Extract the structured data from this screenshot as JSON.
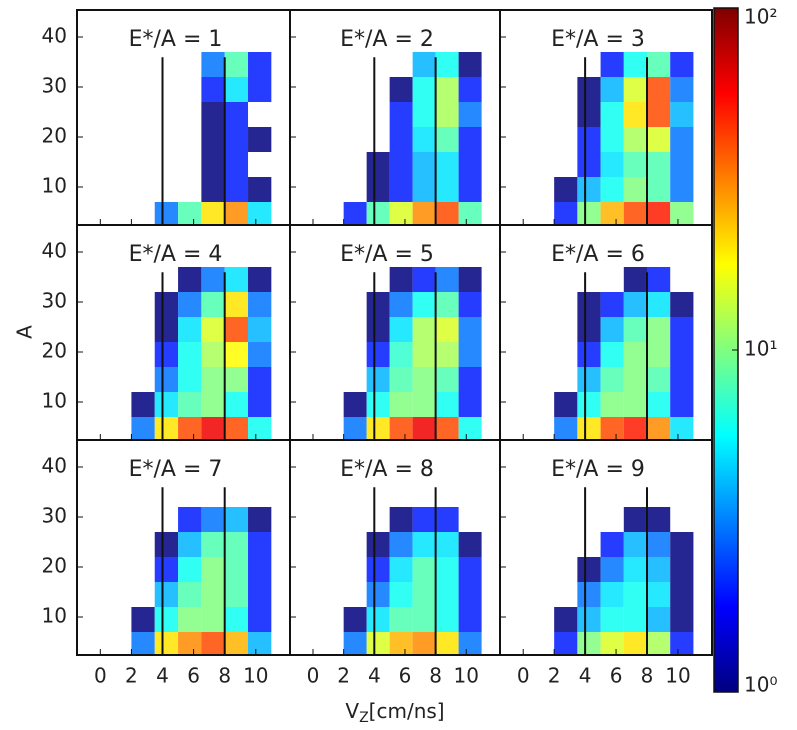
{
  "chart_data": {
    "type": "heatmap-grid",
    "x_label": [
      "V",
      "Z",
      "[cm/ns]"
    ],
    "y_label": "A",
    "xlim": [
      -1.5,
      12.2
    ],
    "ylim": [
      2.4,
      45.4
    ],
    "xticks": [
      0,
      2,
      4,
      6,
      8,
      10
    ],
    "yticks": [
      10,
      20,
      30,
      40
    ],
    "xbins": [
      2,
      3.5,
      5,
      6.5,
      8,
      9.5,
      11
    ],
    "ybins": [
      2,
      7,
      12,
      17,
      22,
      27,
      32,
      37
    ],
    "vlines": [
      4,
      8
    ],
    "colorbar": {
      "lim": [
        1,
        100
      ],
      "log": true,
      "colormap": "jet",
      "ticks": [
        {
          "value": 1,
          "label": "10⁰"
        },
        {
          "value": 10,
          "label": "10¹"
        },
        {
          "value": 100,
          "label": "10²"
        }
      ]
    },
    "panels": [
      {
        "title": "E*/A = 1",
        "values": [
          [
            null,
            3,
            8,
            20,
            30,
            5
          ],
          [
            null,
            null,
            null,
            1,
            2,
            1
          ],
          [
            null,
            null,
            null,
            1,
            2,
            null
          ],
          [
            null,
            null,
            null,
            1,
            2,
            1
          ],
          [
            null,
            null,
            null,
            1,
            2,
            null
          ],
          [
            null,
            null,
            null,
            2,
            5,
            2
          ],
          [
            null,
            null,
            null,
            3,
            8,
            2
          ]
        ]
      },
      {
        "title": "E*/A = 2",
        "values": [
          [
            2,
            8,
            15,
            30,
            40,
            8
          ],
          [
            null,
            1,
            2,
            4,
            5,
            2
          ],
          [
            null,
            1,
            2,
            4,
            5,
            2
          ],
          [
            null,
            null,
            2,
            5,
            8,
            2
          ],
          [
            null,
            null,
            2,
            6,
            12,
            3
          ],
          [
            null,
            null,
            1,
            6,
            12,
            2
          ],
          [
            null,
            null,
            null,
            4,
            6,
            1
          ]
        ]
      },
      {
        "title": "E*/A = 3",
        "values": [
          [
            2,
            10,
            25,
            40,
            50,
            10
          ],
          [
            1,
            4,
            6,
            10,
            8,
            3
          ],
          [
            null,
            2,
            5,
            8,
            8,
            3
          ],
          [
            null,
            2,
            6,
            12,
            15,
            3
          ],
          [
            null,
            1,
            6,
            20,
            40,
            4
          ],
          [
            null,
            1,
            4,
            15,
            40,
            3
          ],
          [
            null,
            null,
            2,
            6,
            8,
            2
          ]
        ]
      },
      {
        "title": "E*/A = 4",
        "values": [
          [
            3,
            20,
            40,
            60,
            40,
            6
          ],
          [
            1,
            5,
            8,
            10,
            6,
            2
          ],
          [
            null,
            3,
            6,
            10,
            10,
            2
          ],
          [
            null,
            2,
            6,
            12,
            18,
            3
          ],
          [
            null,
            1,
            5,
            15,
            40,
            4
          ],
          [
            null,
            1,
            3,
            8,
            20,
            3
          ],
          [
            null,
            null,
            1,
            3,
            5,
            1
          ]
        ]
      },
      {
        "title": "E*/A = 5",
        "values": [
          [
            3,
            20,
            40,
            60,
            40,
            6
          ],
          [
            1,
            6,
            10,
            10,
            6,
            2
          ],
          [
            null,
            4,
            8,
            10,
            8,
            2
          ],
          [
            null,
            2,
            7,
            12,
            12,
            3
          ],
          [
            null,
            1,
            5,
            12,
            15,
            3
          ],
          [
            null,
            1,
            3,
            6,
            8,
            2
          ],
          [
            null,
            null,
            1,
            2,
            3,
            1
          ]
        ]
      },
      {
        "title": "E*/A = 6",
        "values": [
          [
            3,
            20,
            40,
            50,
            30,
            5
          ],
          [
            1,
            6,
            10,
            10,
            6,
            2
          ],
          [
            null,
            4,
            8,
            10,
            8,
            2
          ],
          [
            null,
            2,
            6,
            10,
            10,
            2
          ],
          [
            null,
            1,
            4,
            8,
            10,
            2
          ],
          [
            null,
            1,
            2,
            4,
            5,
            1
          ],
          [
            null,
            null,
            null,
            1,
            2,
            null
          ]
        ]
      },
      {
        "title": "E*/A = 7",
        "values": [
          [
            3,
            20,
            30,
            40,
            25,
            4
          ],
          [
            1,
            6,
            10,
            10,
            6,
            2
          ],
          [
            null,
            4,
            8,
            10,
            8,
            2
          ],
          [
            null,
            2,
            6,
            10,
            8,
            2
          ],
          [
            null,
            1,
            4,
            8,
            8,
            2
          ],
          [
            null,
            null,
            2,
            3,
            4,
            1
          ],
          [
            null,
            null,
            null,
            null,
            null,
            null
          ]
        ]
      },
      {
        "title": "E*/A = 8",
        "values": [
          [
            3,
            15,
            25,
            30,
            20,
            3
          ],
          [
            1,
            5,
            8,
            8,
            6,
            2
          ],
          [
            null,
            3,
            6,
            8,
            6,
            2
          ],
          [
            null,
            2,
            5,
            8,
            6,
            2
          ],
          [
            null,
            1,
            3,
            5,
            5,
            1
          ],
          [
            null,
            null,
            1,
            2,
            2,
            null
          ],
          [
            null,
            null,
            null,
            null,
            null,
            null
          ]
        ]
      },
      {
        "title": "E*/A = 9",
        "values": [
          [
            2,
            10,
            15,
            20,
            12,
            2
          ],
          [
            1,
            4,
            6,
            6,
            4,
            1
          ],
          [
            null,
            3,
            5,
            6,
            5,
            1
          ],
          [
            null,
            1,
            3,
            5,
            4,
            1
          ],
          [
            null,
            null,
            2,
            4,
            3,
            1
          ],
          [
            null,
            null,
            null,
            1,
            1,
            null
          ],
          [
            null,
            null,
            null,
            null,
            null,
            null
          ]
        ]
      }
    ]
  }
}
